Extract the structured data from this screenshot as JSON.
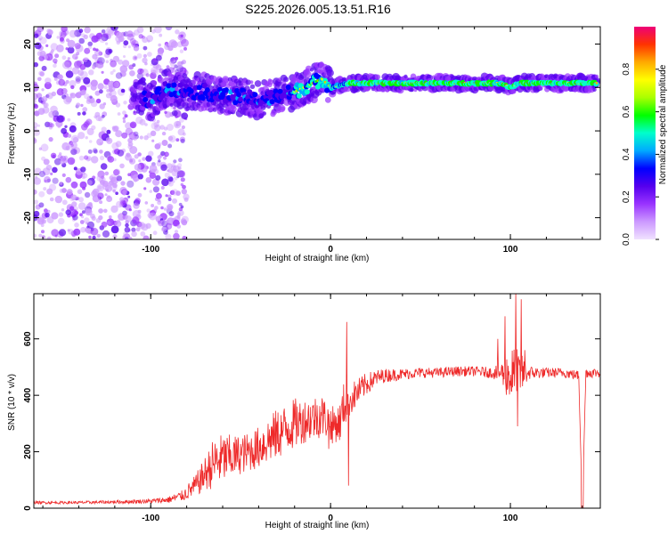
{
  "title": "S225.2026.005.13.51.R16",
  "chart_data": [
    {
      "type": "heatmap",
      "xlabel": "Height of straight line (km)",
      "ylabel": "Frequency (Hz)",
      "xlim": [
        -165,
        150
      ],
      "ylim": [
        -25,
        24
      ],
      "x_ticks": [
        -100,
        0,
        100
      ],
      "y_ticks": [
        20,
        10,
        0,
        -10,
        -20
      ],
      "ridge_x": [
        -110,
        -100,
        -90,
        -80,
        -70,
        -60,
        -50,
        -40,
        -30,
        -20,
        -10,
        -5,
        0,
        10,
        20,
        40,
        60,
        80,
        95,
        100,
        105,
        120,
        140
      ],
      "ridge_y": [
        8,
        7,
        10,
        9,
        9,
        8,
        8,
        7,
        8,
        9,
        11,
        12,
        10,
        11,
        11,
        11,
        11,
        11,
        11,
        10,
        11,
        11,
        11
      ],
      "colorbar": {
        "label": "Normalized spectral amplitude",
        "range": [
          0,
          1
        ],
        "ticks": [
          "0.0",
          "0.2",
          "0.4",
          "0.6",
          "0.8"
        ],
        "colors": [
          "#f0e2ff",
          "#cc99ff",
          "#9933ff",
          "#5500ee",
          "#0000ff",
          "#00aaff",
          "#00ffcc",
          "#00ff00",
          "#aaff00",
          "#ffff00",
          "#ffaa00",
          "#ff3300",
          "#ee0077"
        ]
      }
    },
    {
      "type": "line",
      "xlabel": "Height of straight line (km)",
      "ylabel": "SNR (10 * v/v)",
      "xlim": [
        -165,
        150
      ],
      "ylim": [
        0,
        760
      ],
      "x_ticks": [
        -100,
        0,
        100
      ],
      "y_ticks": [
        0,
        200,
        400,
        600
      ],
      "color": "#ee2a2a",
      "x": [
        -165,
        -140,
        -120,
        -100,
        -90,
        -82,
        -75,
        -70,
        -65,
        -60,
        -55,
        -50,
        -45,
        -40,
        -35,
        -30,
        -25,
        -20,
        -15,
        -10,
        -5,
        0,
        5,
        8,
        10,
        15,
        20,
        25,
        30,
        40,
        50,
        60,
        70,
        80,
        90,
        95,
        100,
        105,
        110,
        120,
        130,
        138,
        140,
        142,
        145,
        150
      ],
      "y": [
        20,
        20,
        22,
        25,
        30,
        45,
        80,
        120,
        160,
        175,
        180,
        190,
        200,
        215,
        240,
        260,
        280,
        300,
        310,
        320,
        330,
        300,
        300,
        380,
        380,
        410,
        440,
        460,
        470,
        475,
        480,
        480,
        485,
        485,
        480,
        480,
        470,
        470,
        480,
        480,
        480,
        470,
        0,
        480,
        480,
        480
      ],
      "spread": [
        5,
        5,
        6,
        8,
        12,
        20,
        40,
        60,
        90,
        90,
        80,
        70,
        70,
        75,
        85,
        90,
        90,
        90,
        80,
        80,
        80,
        60,
        70,
        90,
        60,
        50,
        40,
        30,
        25,
        20,
        18,
        18,
        18,
        18,
        20,
        40,
        110,
        90,
        25,
        18,
        18,
        18,
        0,
        18,
        18,
        18
      ],
      "spikes": [
        [
          -1,
          210
        ],
        [
          1,
          230
        ],
        [
          9,
          660
        ],
        [
          10,
          80
        ],
        [
          93,
          600
        ],
        [
          97,
          680
        ],
        [
          103,
          760
        ],
        [
          104,
          290
        ],
        [
          106,
          740
        ],
        [
          108,
          560
        ]
      ]
    }
  ]
}
